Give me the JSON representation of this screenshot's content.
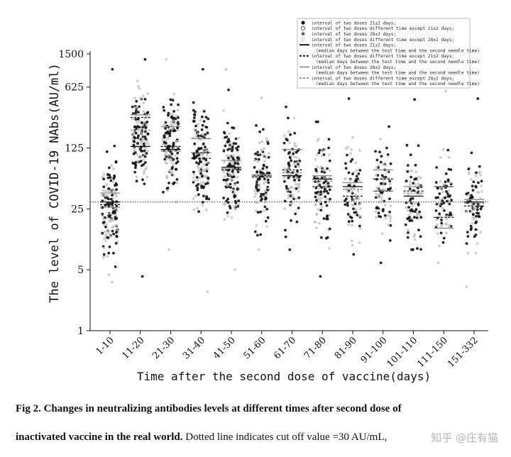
{
  "figure": {
    "ylabel": "The level of COVID-19 NAbs(AU/ml)",
    "xlabel": "Time after the second dose of vaccine(days)"
  },
  "legend": [
    {
      "marker": "filled-circle",
      "label": "interval of two doses 21±2 days;"
    },
    {
      "marker": "open-circle",
      "label": "interval of two doses different time except 21±2 days;"
    },
    {
      "marker": "filled-star",
      "label": "interval of two doses 28±2 days;"
    },
    {
      "marker": "open-star",
      "label": "interval of two doses different time except 28±2 days;"
    },
    {
      "marker": "solid-line-thick",
      "label": "interval of two doses 21±2 days;"
    },
    {
      "marker": "none",
      "label": "(median days between the test time and the second needle time)"
    },
    {
      "marker": "dashed-line-thick",
      "label": "interval of two doses different time except 21±2 days;"
    },
    {
      "marker": "none",
      "label": "(median days between the test time and the second needle time)"
    },
    {
      "marker": "solid-line-gray",
      "label": "interval of two doses 28±2 days;"
    },
    {
      "marker": "none",
      "label": "(median days between the test time and the second needle time)"
    },
    {
      "marker": "dashed-line-gray",
      "label": "interval of two doses different time except 28±2 days;"
    },
    {
      "marker": "none",
      "label": "(median days between the test time and the second needle time)"
    }
  ],
  "chart_data": {
    "type": "scatter",
    "title": "",
    "xlabel": "Time after the second dose of vaccine(days)",
    "ylabel": "The level of COVID-19 NAbs(AU/ml)",
    "yscale": "log",
    "ylim": [
      1,
      1500
    ],
    "yticks": [
      1,
      5,
      25,
      125,
      625,
      1500
    ],
    "categories": [
      "1-10",
      "11-20",
      "21-30",
      "31-40",
      "41-50",
      "51-60",
      "61-70",
      "71-80",
      "81-90",
      "91-100",
      "101-110",
      "111-150",
      "151-332"
    ],
    "cutoff": 30,
    "marker_colors": {
      "filled": "#111111",
      "open": "#bdbdbd"
    },
    "series": [
      {
        "name": "interval of two doses 21±2 days;",
        "style": "solid-black",
        "medians": [
          30,
          130,
          120,
          110,
          75,
          60,
          60,
          55,
          45,
          40,
          35,
          45,
          30
        ]
      },
      {
        "name": "interval of two doses different time except 21±2 days;",
        "style": "dashed-black",
        "medians": [
          28,
          280,
          130,
          95,
          70,
          58,
          70,
          45,
          35,
          55,
          40,
          20,
          27
        ]
      },
      {
        "name": "interval of two doses 28±2 days;",
        "style": "solid-gray",
        "medians": [
          38,
          300,
          220,
          160,
          90,
          62,
          120,
          60,
          50,
          70,
          45,
          15,
          32
        ]
      },
      {
        "name": "interval of two doses different time except 28±2 days;",
        "style": "dashed-gray",
        "medians": [
          26,
          200,
          115,
          110,
          72,
          60,
          65,
          52,
          42,
          40,
          38,
          45,
          29
        ]
      }
    ],
    "groups": [
      {
        "category": "1-10",
        "center": 25,
        "min": 3.6,
        "max": 1000
      },
      {
        "category": "11-20",
        "center": 170,
        "min": 4.2,
        "max": 1300
      },
      {
        "category": "21-30",
        "center": 130,
        "min": 8.5,
        "max": 1300
      },
      {
        "category": "31-40",
        "center": 100,
        "min": 2.8,
        "max": 1000
      },
      {
        "category": "41-50",
        "center": 70,
        "min": 5,
        "max": 1000
      },
      {
        "category": "51-60",
        "center": 60,
        "min": 8.5,
        "max": 470
      },
      {
        "category": "61-70",
        "center": 60,
        "min": 8.5,
        "max": 370
      },
      {
        "category": "71-80",
        "center": 45,
        "min": 4.2,
        "max": 250
      },
      {
        "category": "81-90",
        "center": 40,
        "min": 7.5,
        "max": 460
      },
      {
        "category": "91-100",
        "center": 38,
        "min": 6,
        "max": 220
      },
      {
        "category": "101-110",
        "center": 32,
        "min": 8.5,
        "max": 450
      },
      {
        "category": "111-150",
        "center": 32,
        "min": 6,
        "max": 560
      },
      {
        "category": "151-332",
        "center": 28,
        "min": 3.2,
        "max": 460
      }
    ]
  },
  "caption": {
    "line1": "Fig 2. Changes in neutralizing antibodies levels at different times after second dose of",
    "line2_bold": "inactivated vaccine in the real world.",
    "line2_rest": " Dotted line indicates cut off value =30 AU/mL,"
  },
  "watermark": "知乎 @庄有猫"
}
